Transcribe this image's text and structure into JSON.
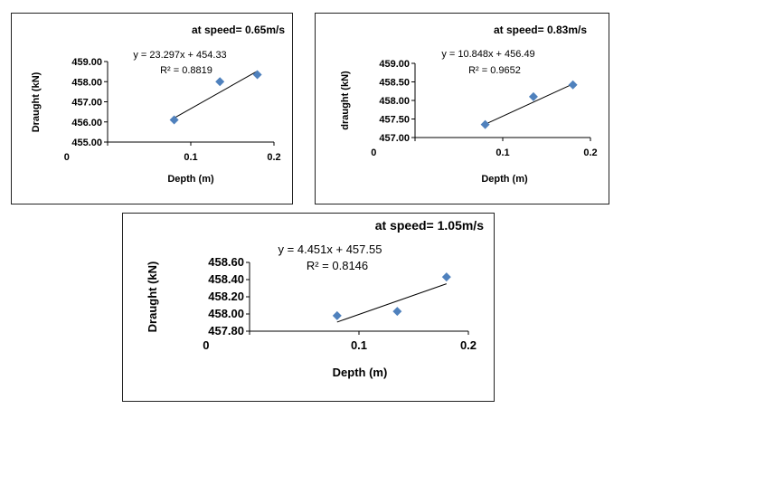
{
  "colors": {
    "marker": "#4f81bd",
    "trendline": "#000000",
    "axis": "#000000",
    "text": "#000000"
  },
  "chart_data": [
    {
      "type": "scatter",
      "title": "at speed= 0.65m/s",
      "xlabel": "Depth (m)",
      "ylabel": "Draught (kN)",
      "xlim": [
        0,
        0.2
      ],
      "ylim": [
        455.0,
        459.0
      ],
      "x_ticks": [
        "0",
        "0.1",
        "0.2"
      ],
      "y_ticks": [
        "455.00",
        "456.00",
        "457.00",
        "458.00",
        "459.00"
      ],
      "grid": false,
      "points": [
        {
          "x": 0.08,
          "y": 456.1
        },
        {
          "x": 0.135,
          "y": 458.0
        },
        {
          "x": 0.18,
          "y": 458.35
        }
      ],
      "trendline": {
        "slope": 23.297,
        "intercept": 454.33,
        "equation": "y = 23.297x + 454.33",
        "r2": "R² = 0.8819"
      }
    },
    {
      "type": "scatter",
      "title": "at speed= 0.83m/s",
      "xlabel": "Depth (m)",
      "ylabel": "draught (kN)",
      "xlim": [
        0,
        0.2
      ],
      "ylim": [
        457.0,
        459.0
      ],
      "x_ticks": [
        "0",
        "0.1",
        "0.2"
      ],
      "y_ticks": [
        "457.00",
        "457.50",
        "458.00",
        "458.50",
        "459.00"
      ],
      "grid": false,
      "points": [
        {
          "x": 0.08,
          "y": 457.35
        },
        {
          "x": 0.135,
          "y": 458.1
        },
        {
          "x": 0.18,
          "y": 458.42
        }
      ],
      "trendline": {
        "slope": 10.848,
        "intercept": 456.49,
        "equation": "y = 10.848x + 456.49",
        "r2": "R² = 0.9652"
      }
    },
    {
      "type": "scatter",
      "title": "at speed= 1.05m/s",
      "xlabel": "Depth (m)",
      "ylabel": "Draught (kN)",
      "xlim": [
        0,
        0.2
      ],
      "ylim": [
        457.8,
        458.6
      ],
      "x_ticks": [
        "0",
        "0.1",
        "0.2"
      ],
      "y_ticks": [
        "457.80",
        "458.00",
        "458.20",
        "458.40",
        "458.60"
      ],
      "grid": false,
      "points": [
        {
          "x": 0.08,
          "y": 457.98
        },
        {
          "x": 0.135,
          "y": 458.03
        },
        {
          "x": 0.18,
          "y": 458.43
        }
      ],
      "trendline": {
        "slope": 4.451,
        "intercept": 457.55,
        "equation": "y = 4.451x + 457.55",
        "r2": "R² = 0.8146"
      }
    }
  ]
}
